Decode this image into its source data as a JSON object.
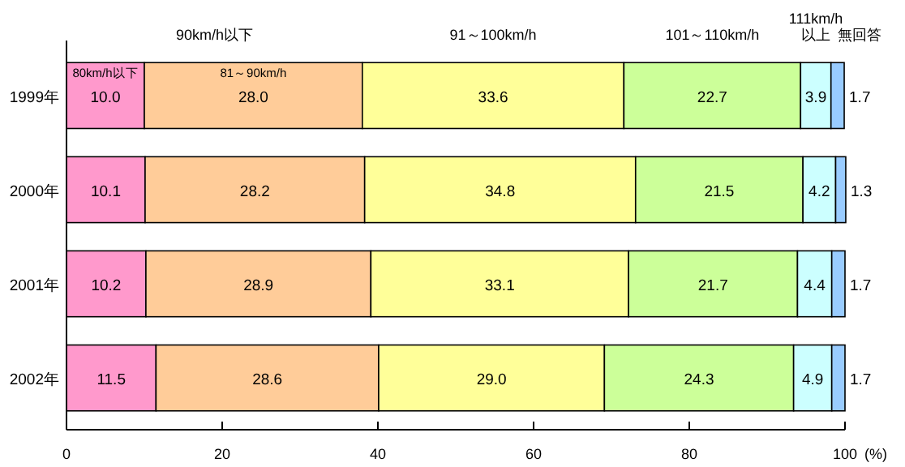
{
  "chart_data": {
    "type": "bar",
    "orientation": "horizontal",
    "stacked": true,
    "categories": [
      "1999年",
      "2000年",
      "2001年",
      "2002年"
    ],
    "series": [
      {
        "name": "80km/h以下",
        "color": "#ff99cc",
        "values": [
          10.0,
          10.1,
          10.2,
          11.5
        ]
      },
      {
        "name": "81～90km/h",
        "color": "#ffcc99",
        "values": [
          28.0,
          28.2,
          28.9,
          28.6
        ]
      },
      {
        "name": "91～100km/h",
        "color": "#ffff99",
        "values": [
          33.6,
          34.8,
          33.1,
          29.0
        ]
      },
      {
        "name": "101～110km/h",
        "color": "#ccff99",
        "values": [
          22.7,
          21.5,
          21.7,
          24.3
        ]
      },
      {
        "name": "111km/h\n以上",
        "color": "#ccffff",
        "values": [
          3.9,
          4.2,
          4.4,
          4.9
        ]
      },
      {
        "name": "無回答",
        "color": "#99ccff",
        "values": [
          1.7,
          1.3,
          1.7,
          1.7
        ]
      }
    ],
    "value_labels": [
      [
        "10.0",
        "10.1",
        "10.2",
        "11.5"
      ],
      [
        "28.0",
        "28.2",
        "28.9",
        "28.6"
      ],
      [
        "33.6",
        "34.8",
        "33.1",
        "29.0"
      ],
      [
        "22.7",
        "21.5",
        "21.7",
        "24.3"
      ],
      [
        "3.9",
        "4.2",
        "4.4",
        "4.9"
      ],
      [
        "1.7",
        "1.3",
        "1.7",
        "1.7"
      ]
    ],
    "annotations": [
      "90km/h以下"
    ],
    "xlabel": "(%)",
    "xlim": [
      0,
      100
    ],
    "xticks": [
      0,
      20,
      40,
      60,
      80,
      100
    ],
    "grid": false,
    "legend": "top"
  }
}
